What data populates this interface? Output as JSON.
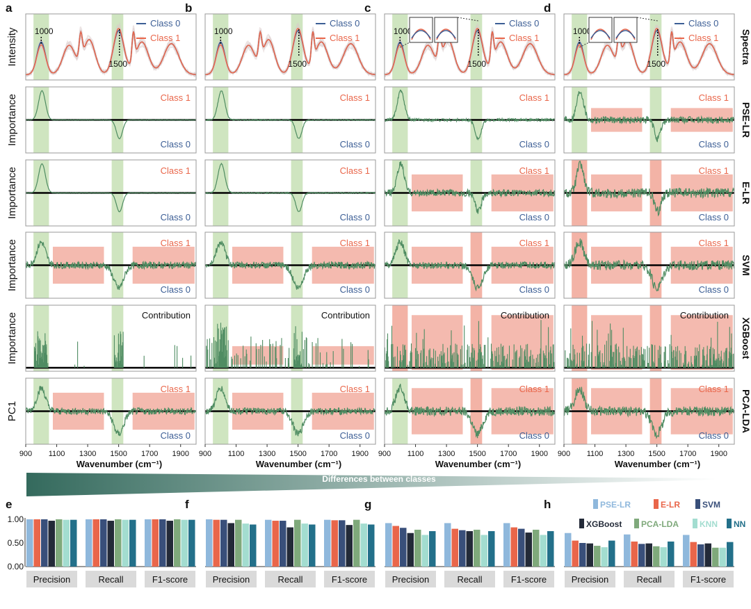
{
  "colors": {
    "class0": "#3c5e95",
    "class1": "#e9664a",
    "green_band": "#cfe5c0",
    "red_band": "#f3b3a6",
    "trace": "#4f8c62",
    "baseline": "#000000",
    "gradient_start": "#346a5d",
    "gradient_end": "#ffffff"
  },
  "panel_letters": [
    "a",
    "b",
    "c",
    "d"
  ],
  "row_labels": [
    "Spectra",
    "PSE-LR",
    "E-LR",
    "SVM",
    "XGBoost",
    "PCA-LDA"
  ],
  "y_axis_labels": [
    "Intensity",
    "Importance",
    "Importance",
    "Importance",
    "Importance",
    "PC1"
  ],
  "legend": {
    "class0": "Class 0",
    "class1": "Class 1"
  },
  "importance_labels": {
    "class1": "Class 1",
    "class0": "Class 0",
    "contribution": "Contribution"
  },
  "peak_labels": [
    "1000",
    "1500"
  ],
  "x_axis": {
    "title": "Wavenumber (cm⁻¹)",
    "ticks": [
      "900",
      "1100",
      "1300",
      "1500",
      "1700",
      "1900"
    ],
    "range": [
      900,
      2000
    ]
  },
  "gradient_label": "Differences between classes",
  "bar_panel_letters": [
    "e",
    "f",
    "g",
    "h"
  ],
  "bar_legend": {
    "row1": [
      "PSE-LR",
      "E-LR",
      "SVM"
    ],
    "row2": [
      "XGBoost",
      "PCA-LDA",
      "KNN",
      "NN"
    ]
  },
  "chart_data": {
    "type": "bar",
    "categories": [
      "Precision",
      "Recall",
      "F1-score"
    ],
    "series_names": [
      "PSE-LR",
      "E-LR",
      "SVM",
      "XGBoost",
      "PCA-LDA",
      "KNN",
      "NN"
    ],
    "series_colors": [
      "#8fb8dc",
      "#e9664a",
      "#394f7a",
      "#232a38",
      "#7fa97b",
      "#a3ddd0",
      "#23708a"
    ],
    "y_ticks": [
      "0.00",
      "0.50",
      "1.00"
    ],
    "ylim": [
      0,
      1.0
    ],
    "panels": [
      {
        "label": "e",
        "values": [
          [
            1.0,
            1.0,
            1.0,
            0.97,
            1.0,
            0.99,
            0.99
          ],
          [
            1.0,
            1.0,
            1.0,
            0.97,
            1.0,
            0.99,
            0.99
          ],
          [
            1.0,
            1.0,
            1.0,
            0.97,
            1.0,
            0.99,
            0.99
          ]
        ]
      },
      {
        "label": "f",
        "values": [
          [
            1.0,
            0.99,
            0.99,
            0.92,
            0.99,
            0.91,
            0.89
          ],
          [
            0.99,
            0.97,
            0.97,
            0.83,
            0.99,
            0.91,
            0.89
          ],
          [
            0.99,
            0.98,
            0.98,
            0.88,
            0.99,
            0.91,
            0.89
          ]
        ]
      },
      {
        "label": "g",
        "values": [
          [
            0.92,
            0.86,
            0.82,
            0.71,
            0.78,
            0.67,
            0.75
          ],
          [
            0.92,
            0.8,
            0.77,
            0.75,
            0.78,
            0.67,
            0.75
          ],
          [
            0.92,
            0.83,
            0.8,
            0.72,
            0.78,
            0.67,
            0.75
          ]
        ]
      },
      {
        "label": "h",
        "values": [
          [
            0.71,
            0.55,
            0.5,
            0.49,
            0.44,
            0.41,
            0.55
          ],
          [
            0.68,
            0.53,
            0.48,
            0.49,
            0.43,
            0.41,
            0.53
          ],
          [
            0.67,
            0.52,
            0.47,
            0.49,
            0.4,
            0.4,
            0.52
          ]
        ]
      }
    ]
  }
}
